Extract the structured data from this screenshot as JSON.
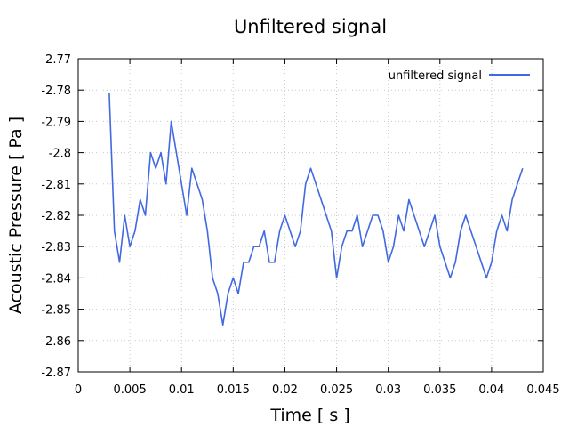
{
  "chart_data": {
    "type": "line",
    "title": "Unfiltered signal",
    "xlabel": "Time [ s ]",
    "ylabel": "Acoustic Pressure [ Pa ]",
    "xlim": [
      0,
      0.045
    ],
    "ylim": [
      -2.87,
      -2.77
    ],
    "xticks": [
      "0",
      "0.005",
      "0.01",
      "0.015",
      "0.02",
      "0.025",
      "0.03",
      "0.035",
      "0.04",
      "0.045"
    ],
    "yticks": [
      "-2.77",
      "-2.78",
      "-2.79",
      "-2.8",
      "-2.81",
      "-2.82",
      "-2.83",
      "-2.84",
      "-2.85",
      "-2.86",
      "-2.87"
    ],
    "grid": true,
    "legend": "top-right",
    "color": "#4169e1",
    "series": [
      {
        "name": "unfiltered signal",
        "x": [
          0.003,
          0.0035,
          0.004,
          0.0045,
          0.005,
          0.0055,
          0.006,
          0.0065,
          0.007,
          0.0075,
          0.008,
          0.0085,
          0.009,
          0.0095,
          0.01,
          0.0105,
          0.011,
          0.0115,
          0.012,
          0.0125,
          0.013,
          0.0135,
          0.014,
          0.0145,
          0.015,
          0.0155,
          0.016,
          0.0165,
          0.017,
          0.0175,
          0.018,
          0.0185,
          0.019,
          0.0195,
          0.02,
          0.0205,
          0.021,
          0.0215,
          0.022,
          0.0225,
          0.023,
          0.0235,
          0.024,
          0.0245,
          0.025,
          0.0255,
          0.026,
          0.0265,
          0.027,
          0.0275,
          0.028,
          0.0285,
          0.029,
          0.0295,
          0.03,
          0.0305,
          0.031,
          0.0315,
          0.032,
          0.0325,
          0.033,
          0.0335,
          0.034,
          0.0345,
          0.035,
          0.0355,
          0.036,
          0.0365,
          0.037,
          0.0375,
          0.038,
          0.0385,
          0.039,
          0.0395,
          0.04,
          0.0405,
          0.041,
          0.0415,
          0.042,
          0.0425,
          0.043
        ],
        "values": [
          -2.781,
          -2.825,
          -2.835,
          -2.82,
          -2.83,
          -2.825,
          -2.815,
          -2.82,
          -2.8,
          -2.805,
          -2.8,
          -2.81,
          -2.79,
          -2.8,
          -2.81,
          -2.82,
          -2.805,
          -2.81,
          -2.815,
          -2.825,
          -2.84,
          -2.845,
          -2.855,
          -2.845,
          -2.84,
          -2.845,
          -2.835,
          -2.835,
          -2.83,
          -2.83,
          -2.825,
          -2.835,
          -2.835,
          -2.825,
          -2.82,
          -2.825,
          -2.83,
          -2.825,
          -2.81,
          -2.805,
          -2.81,
          -2.815,
          -2.82,
          -2.825,
          -2.84,
          -2.83,
          -2.825,
          -2.825,
          -2.82,
          -2.83,
          -2.825,
          -2.82,
          -2.82,
          -2.825,
          -2.835,
          -2.83,
          -2.82,
          -2.825,
          -2.815,
          -2.82,
          -2.825,
          -2.83,
          -2.825,
          -2.82,
          -2.83,
          -2.835,
          -2.84,
          -2.835,
          -2.825,
          -2.82,
          -2.825,
          -2.83,
          -2.835,
          -2.84,
          -2.835,
          -2.825,
          -2.82,
          -2.825,
          -2.815,
          -2.81,
          -2.805
        ]
      }
    ]
  }
}
